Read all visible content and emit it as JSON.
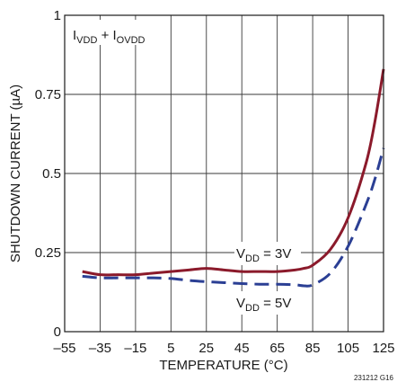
{
  "chart_data": {
    "type": "line",
    "title": "",
    "xlabel": "TEMPERATURE (°C)",
    "ylabel": "SHUTDOWN CURRENT (µA)",
    "xlim": [
      -55,
      125
    ],
    "ylim": [
      0,
      1
    ],
    "x_ticks": [
      "–55",
      "–35",
      "–15",
      "5",
      "25",
      "45",
      "65",
      "85",
      "105",
      "125"
    ],
    "y_ticks": [
      "0",
      "0.25",
      "0.5",
      "0.75",
      "1"
    ],
    "grid": true,
    "series": [
      {
        "name": "VDD = 3V",
        "color": "#8b1a2b",
        "dash": "solid",
        "x": [
          -45,
          -35,
          -25,
          -15,
          -5,
          5,
          15,
          25,
          35,
          45,
          55,
          65,
          75,
          80,
          85,
          95,
          105,
          115,
          120,
          125
        ],
        "y": [
          0.19,
          0.18,
          0.18,
          0.18,
          0.185,
          0.19,
          0.195,
          0.2,
          0.195,
          0.19,
          0.19,
          0.19,
          0.195,
          0.2,
          0.21,
          0.26,
          0.36,
          0.53,
          0.66,
          0.83
        ]
      },
      {
        "name": "VDD = 5V",
        "color": "#2b3f94",
        "dash": "dashed",
        "x": [
          -45,
          -35,
          -25,
          -15,
          -5,
          5,
          15,
          25,
          35,
          45,
          55,
          65,
          75,
          80,
          85,
          95,
          105,
          115,
          120,
          125
        ],
        "y": [
          0.175,
          0.17,
          0.17,
          0.17,
          0.17,
          0.168,
          0.162,
          0.158,
          0.155,
          0.152,
          0.15,
          0.15,
          0.148,
          0.145,
          0.148,
          0.185,
          0.27,
          0.4,
          0.48,
          0.58
        ]
      }
    ],
    "annotations": {
      "box_label": {
        "main1": "I",
        "sub1": "VDD",
        "mid": " + I",
        "sub2": "OVDD"
      },
      "label_3v": {
        "main": "V",
        "sub": "DD",
        "tail": " = 3V"
      },
      "label_5v": {
        "main": "V",
        "sub": "DD",
        "tail": " = 5V"
      }
    },
    "figure_id": "231212 G16"
  }
}
